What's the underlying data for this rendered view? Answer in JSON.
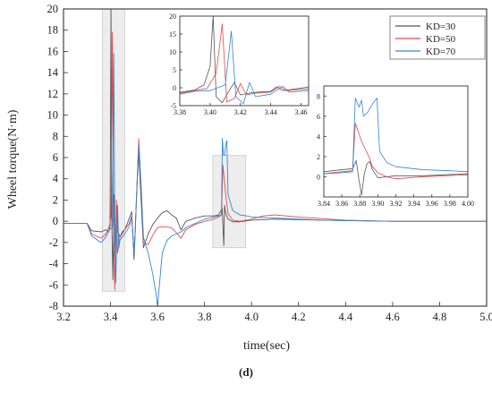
{
  "chart_data": {
    "type": "line",
    "xlabel": "time(sec)",
    "ylabel": "Wheel torque(N·m)",
    "caption": "(d)",
    "colors": {
      "KD=30": "#555555",
      "KD=50": "#e8484a",
      "KD=70": "#2f86d6",
      "highlight": "#d6d6d6"
    },
    "legend": {
      "placement": "top-right",
      "entries": [
        "KD=30",
        "KD=50",
        "KD=70"
      ]
    },
    "grid": false,
    "main": {
      "xlim": [
        3.2,
        5.0
      ],
      "ylim": [
        -8,
        20
      ],
      "xticks": [
        "3.2",
        "3.4",
        "3.6",
        "3.8",
        "4.0",
        "4.2",
        "4.4",
        "4.6",
        "4.8",
        "5.0"
      ],
      "yticks": [
        "-8",
        "-6",
        "-4",
        "-2",
        "0",
        "2",
        "4",
        "6",
        "8",
        "10",
        "12",
        "14",
        "16",
        "18",
        "20"
      ],
      "highlight_regions": [
        {
          "x": [
            3.365,
            3.46
          ],
          "y": [
            -6.6,
            20
          ]
        },
        {
          "x": [
            3.835,
            3.975
          ],
          "y": [
            -2.5,
            6.2
          ]
        }
      ],
      "series": [
        {
          "name": "KD=30",
          "points": [
            [
              3.2,
              -0.2
            ],
            [
              3.3,
              -0.2
            ],
            [
              3.32,
              -0.9
            ],
            [
              3.36,
              -1.0
            ],
            [
              3.38,
              -0.8
            ],
            [
              3.392,
              -1.0
            ],
            [
              3.398,
              -0.5
            ],
            [
              3.402,
              20.0
            ],
            [
              3.405,
              0.5
            ],
            [
              3.41,
              -5.5
            ],
            [
              3.415,
              2.5
            ],
            [
              3.42,
              -3.8
            ],
            [
              3.426,
              1.5
            ],
            [
              3.432,
              -1.0
            ],
            [
              3.44,
              -1.5
            ],
            [
              3.45,
              -1.0
            ],
            [
              3.46,
              -0.8
            ],
            [
              3.47,
              -0.3
            ],
            [
              3.48,
              0.3
            ],
            [
              3.49,
              0.9
            ],
            [
              3.5,
              -3.6
            ],
            [
              3.505,
              -1.0
            ],
            [
              3.51,
              2.0
            ],
            [
              3.52,
              6.5
            ],
            [
              3.53,
              2.0
            ],
            [
              3.54,
              -2.5
            ],
            [
              3.56,
              -1.2
            ],
            [
              3.58,
              -0.3
            ],
            [
              3.6,
              0.3
            ],
            [
              3.62,
              0.8
            ],
            [
              3.64,
              1.0
            ],
            [
              3.66,
              0.6
            ],
            [
              3.68,
              0.3
            ],
            [
              3.7,
              -0.8
            ],
            [
              3.72,
              0.0
            ],
            [
              3.76,
              0.3
            ],
            [
              3.8,
              0.5
            ],
            [
              3.84,
              0.5
            ],
            [
              3.86,
              0.6
            ],
            [
              3.875,
              1.2
            ],
            [
              3.882,
              -2.3
            ],
            [
              3.885,
              1.5
            ],
            [
              3.89,
              0.7
            ],
            [
              3.9,
              0.2
            ],
            [
              3.92,
              -0.05
            ],
            [
              3.95,
              -0.05
            ],
            [
              4.0,
              0.1
            ],
            [
              4.1,
              0.2
            ],
            [
              4.3,
              0.1
            ],
            [
              4.6,
              0.0
            ],
            [
              5.0,
              0.0
            ]
          ]
        },
        {
          "name": "KD=50",
          "points": [
            [
              3.2,
              -0.2
            ],
            [
              3.3,
              -0.2
            ],
            [
              3.32,
              -1.2
            ],
            [
              3.36,
              -1.6
            ],
            [
              3.38,
              -1.2
            ],
            [
              3.395,
              -0.5
            ],
            [
              3.402,
              0.5
            ],
            [
              3.408,
              17.8
            ],
            [
              3.412,
              0.5
            ],
            [
              3.418,
              -6.5
            ],
            [
              3.425,
              2.0
            ],
            [
              3.43,
              -3.0
            ],
            [
              3.44,
              -1.5
            ],
            [
              3.45,
              -1.2
            ],
            [
              3.46,
              -0.8
            ],
            [
              3.48,
              -0.2
            ],
            [
              3.49,
              0.5
            ],
            [
              3.5,
              -2.8
            ],
            [
              3.505,
              -1.0
            ],
            [
              3.51,
              2.0
            ],
            [
              3.52,
              7.8
            ],
            [
              3.53,
              3.0
            ],
            [
              3.54,
              -2.0
            ],
            [
              3.56,
              -2.2
            ],
            [
              3.58,
              -1.3
            ],
            [
              3.6,
              -0.6
            ],
            [
              3.62,
              -0.5
            ],
            [
              3.66,
              -0.6
            ],
            [
              3.7,
              -1.6
            ],
            [
              3.72,
              -0.8
            ],
            [
              3.76,
              -0.3
            ],
            [
              3.8,
              0.0
            ],
            [
              3.84,
              0.2
            ],
            [
              3.86,
              0.4
            ],
            [
              3.872,
              0.6
            ],
            [
              3.878,
              5.3
            ],
            [
              3.89,
              2.5
            ],
            [
              3.9,
              0.7
            ],
            [
              3.92,
              0.1
            ],
            [
              3.95,
              0.0
            ],
            [
              4.0,
              0.2
            ],
            [
              4.05,
              0.5
            ],
            [
              4.1,
              0.6
            ],
            [
              4.2,
              0.4
            ],
            [
              4.4,
              0.1
            ],
            [
              4.6,
              0.0
            ],
            [
              5.0,
              0.0
            ]
          ]
        },
        {
          "name": "KD=70",
          "points": [
            [
              3.2,
              -0.2
            ],
            [
              3.3,
              -0.2
            ],
            [
              3.32,
              -1.4
            ],
            [
              3.36,
              -2.0
            ],
            [
              3.38,
              -1.5
            ],
            [
              3.395,
              -0.8
            ],
            [
              3.408,
              -0.6
            ],
            [
              3.414,
              15.8
            ],
            [
              3.418,
              0.5
            ],
            [
              3.422,
              -5.8
            ],
            [
              3.43,
              1.5
            ],
            [
              3.435,
              -2.5
            ],
            [
              3.44,
              -1.8
            ],
            [
              3.45,
              -1.5
            ],
            [
              3.46,
              -1.2
            ],
            [
              3.48,
              -0.5
            ],
            [
              3.49,
              0.4
            ],
            [
              3.5,
              -3.0
            ],
            [
              3.505,
              -1.0
            ],
            [
              3.51,
              2.0
            ],
            [
              3.52,
              7.2
            ],
            [
              3.53,
              3.5
            ],
            [
              3.54,
              -1.5
            ],
            [
              3.56,
              -3.0
            ],
            [
              3.58,
              -5.0
            ],
            [
              3.595,
              -7.0
            ],
            [
              3.6,
              -8.0
            ],
            [
              3.62,
              -3.0
            ],
            [
              3.64,
              -1.8
            ],
            [
              3.66,
              -1.4
            ],
            [
              3.7,
              -1.0
            ],
            [
              3.72,
              -0.6
            ],
            [
              3.76,
              -0.2
            ],
            [
              3.8,
              0.2
            ],
            [
              3.84,
              0.4
            ],
            [
              3.86,
              0.5
            ],
            [
              3.872,
              0.6
            ],
            [
              3.876,
              7.8
            ],
            [
              3.88,
              6.3
            ],
            [
              3.885,
              6.2
            ],
            [
              3.89,
              7.2
            ],
            [
              3.895,
              7.6
            ],
            [
              3.9,
              2.5
            ],
            [
              3.92,
              1.0
            ],
            [
              3.95,
              0.6
            ],
            [
              3.98,
              0.5
            ],
            [
              4.0,
              0.4
            ],
            [
              4.1,
              0.3
            ],
            [
              4.3,
              0.1
            ],
            [
              4.6,
              0.0
            ],
            [
              5.0,
              0.0
            ]
          ]
        }
      ]
    },
    "inset1": {
      "xlim": [
        3.38,
        3.465
      ],
      "ylim": [
        -5,
        20
      ],
      "xticks": [
        "3.38",
        "3.40",
        "3.42",
        "3.44",
        "3.46"
      ],
      "yticks": [
        "-5",
        "0",
        "5",
        "10",
        "15",
        "20"
      ],
      "series": [
        {
          "name": "KD=30",
          "points": [
            [
              3.38,
              -1.3
            ],
            [
              3.39,
              -0.6
            ],
            [
              3.396,
              0.8
            ],
            [
              3.4,
              6.0
            ],
            [
              3.402,
              20.0
            ],
            [
              3.404,
              -2.5
            ],
            [
              3.408,
              -4.2
            ],
            [
              3.412,
              -1.2
            ],
            [
              3.416,
              1.5
            ],
            [
              3.42,
              -2.0
            ],
            [
              3.426,
              -1.5
            ],
            [
              3.432,
              -1.2
            ],
            [
              3.44,
              -1.0
            ],
            [
              3.444,
              0.3
            ],
            [
              3.448,
              -0.8
            ],
            [
              3.455,
              -0.4
            ],
            [
              3.465,
              0.2
            ]
          ]
        },
        {
          "name": "KD=50",
          "points": [
            [
              3.38,
              -1.5
            ],
            [
              3.39,
              -0.8
            ],
            [
              3.398,
              -0.2
            ],
            [
              3.404,
              4.0
            ],
            [
              3.408,
              17.8
            ],
            [
              3.411,
              -4.0
            ],
            [
              3.416,
              -3.0
            ],
            [
              3.42,
              1.2
            ],
            [
              3.424,
              -2.0
            ],
            [
              3.43,
              -1.5
            ],
            [
              3.44,
              -1.2
            ],
            [
              3.446,
              0.4
            ],
            [
              3.45,
              -0.8
            ],
            [
              3.465,
              -0.3
            ]
          ]
        },
        {
          "name": "KD=70",
          "points": [
            [
              3.38,
              -1.8
            ],
            [
              3.39,
              -1.0
            ],
            [
              3.4,
              -0.8
            ],
            [
              3.41,
              0.8
            ],
            [
              3.414,
              15.8
            ],
            [
              3.417,
              -2.5
            ],
            [
              3.422,
              -4.5
            ],
            [
              3.426,
              1.5
            ],
            [
              3.43,
              -2.5
            ],
            [
              3.44,
              -1.8
            ],
            [
              3.448,
              0.4
            ],
            [
              3.452,
              -1.2
            ],
            [
              3.465,
              -0.8
            ]
          ]
        }
      ]
    },
    "inset2": {
      "xlim": [
        3.84,
        4.0
      ],
      "ylim": [
        -2,
        9
      ],
      "xticks": [
        "3.84",
        "3.86",
        "3.88",
        "3.90",
        "3.92",
        "3.94",
        "3.96",
        "3.98",
        "4.00"
      ],
      "yticks": [
        "0",
        "2",
        "4",
        "6",
        "8"
      ],
      "series": [
        {
          "name": "KD=30",
          "points": [
            [
              3.84,
              0.5
            ],
            [
              3.86,
              0.7
            ],
            [
              3.872,
              0.8
            ],
            [
              3.876,
              1.6
            ],
            [
              3.879,
              -0.3
            ],
            [
              3.882,
              -1.8
            ],
            [
              3.885,
              0.3
            ],
            [
              3.888,
              1.3
            ],
            [
              3.891,
              1.5
            ],
            [
              3.894,
              0.7
            ],
            [
              3.9,
              -0.1
            ],
            [
              3.91,
              0.0
            ],
            [
              3.92,
              0.1
            ],
            [
              3.95,
              0.1
            ],
            [
              4.0,
              0.3
            ]
          ]
        },
        {
          "name": "KD=50",
          "points": [
            [
              3.84,
              0.3
            ],
            [
              3.86,
              0.5
            ],
            [
              3.872,
              0.6
            ],
            [
              3.875,
              5.3
            ],
            [
              3.882,
              3.5
            ],
            [
              3.89,
              2.0
            ],
            [
              3.894,
              1.0
            ],
            [
              3.9,
              0.4
            ],
            [
              3.91,
              0.0
            ],
            [
              3.92,
              -0.2
            ],
            [
              3.95,
              0.0
            ],
            [
              4.0,
              0.2
            ]
          ]
        },
        {
          "name": "KD=70",
          "points": [
            [
              3.84,
              0.3
            ],
            [
              3.86,
              0.4
            ],
            [
              3.872,
              0.5
            ],
            [
              3.875,
              7.8
            ],
            [
              3.879,
              6.9
            ],
            [
              3.882,
              7.6
            ],
            [
              3.884,
              6.0
            ],
            [
              3.888,
              6.3
            ],
            [
              3.894,
              7.2
            ],
            [
              3.899,
              7.8
            ],
            [
              3.902,
              2.5
            ],
            [
              3.91,
              1.4
            ],
            [
              3.92,
              1.0
            ],
            [
              3.95,
              0.7
            ],
            [
              3.98,
              0.6
            ],
            [
              4.0,
              0.5
            ]
          ]
        }
      ]
    }
  }
}
